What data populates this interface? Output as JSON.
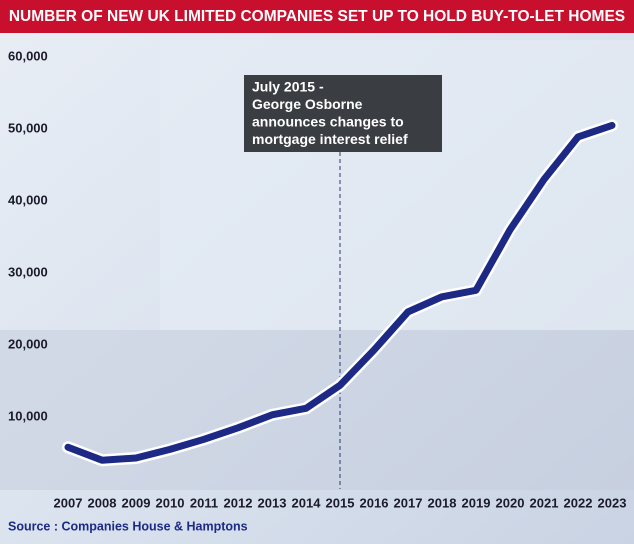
{
  "chart_data": {
    "type": "line",
    "title": "NUMBER OF NEW UK LIMITED COMPANIES SET UP TO HOLD BUY-TO-LET HOMES",
    "source": "Source : Companies House & Hamptons",
    "annotation": {
      "x": 2015,
      "lines": [
        "July 2015  -",
        "George Osborne",
        "announces changes to",
        "mortgage interest relief"
      ]
    },
    "x": [
      2007,
      2008,
      2009,
      2010,
      2011,
      2012,
      2013,
      2014,
      2015,
      2016,
      2017,
      2018,
      2019,
      2020,
      2021,
      2022,
      2023
    ],
    "values": [
      5800,
      4000,
      4300,
      5500,
      6900,
      8500,
      10300,
      11200,
      14400,
      19300,
      24600,
      26700,
      27600,
      36000,
      43000,
      48900,
      50500
    ],
    "color": "#1c2a86",
    "xlim": [
      2007,
      2023
    ],
    "xticks": [
      2007,
      2008,
      2009,
      2010,
      2011,
      2012,
      2013,
      2014,
      2015,
      2016,
      2017,
      2018,
      2019,
      2020,
      2021,
      2022,
      2023
    ],
    "ylim": [
      0,
      60000
    ],
    "yticks": [
      {
        "value": 10000,
        "label": "10,000"
      },
      {
        "value": 20000,
        "label": "20,000"
      },
      {
        "value": 30000,
        "label": "30,000"
      },
      {
        "value": 40000,
        "label": "40,000"
      },
      {
        "value": 50000,
        "label": "50,000"
      },
      {
        "value": 60000,
        "label": "60,000"
      }
    ]
  }
}
